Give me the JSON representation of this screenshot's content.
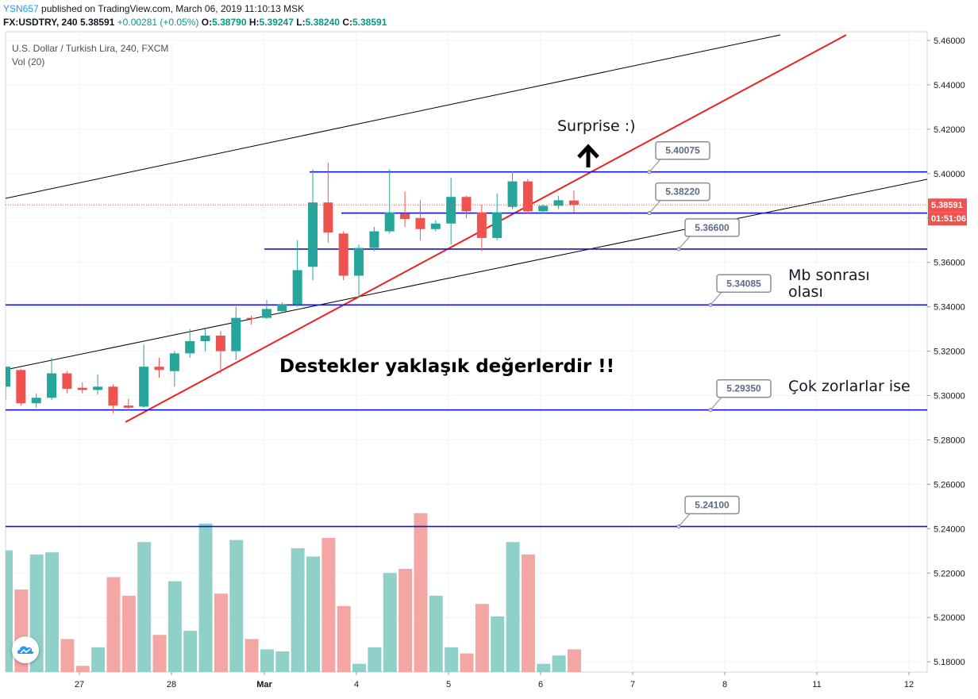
{
  "header": {
    "author": "YSN657",
    "published": " published on TradingView.com, March 06, 2019 11:10:13 MSK",
    "symbol": "FX:USDTRY, 240",
    "last": "5.38591",
    "change": "+0.00281 (+0.05%)",
    "o_label": "O:",
    "o": "5.38790",
    "h_label": "H:",
    "h": "5.39247",
    "l_label": "L:",
    "l": "5.38240",
    "c_label": "C:",
    "c": "5.38591"
  },
  "legend": {
    "title": "U.S. Dollar / Turkish Lira, 240, FXCM",
    "volume": "Vol (20)"
  },
  "colors": {
    "up": "#26a69a",
    "down": "#ef5350",
    "vol_up": "#8fd1c9",
    "vol_down": "#f4a6a4",
    "level": "#1515d0",
    "trend_red": "#f02020",
    "channel": "#000000"
  },
  "chart_data": {
    "type": "candlestick",
    "symbol": "FX:USDTRY",
    "interval": "240",
    "ylim": [
      5.17,
      5.465
    ],
    "y_ticks": [
      "5.46000",
      "5.44000",
      "5.42000",
      "5.40000",
      "5.38000",
      "5.36000",
      "5.34000",
      "5.32000",
      "5.30000",
      "5.28000",
      "5.26000",
      "5.24000",
      "5.22000",
      "5.20000",
      "5.18000"
    ],
    "x_ticks": [
      "27",
      "28",
      "Mar",
      "4",
      "5",
      "6",
      "7",
      "8",
      "11",
      "12"
    ],
    "price_label": "5.38591",
    "time_label": "01:51:06",
    "candles": [
      {
        "o": 5.304,
        "h": 5.313,
        "l": 5.298,
        "c": 5.313
      },
      {
        "o": 5.3115,
        "h": 5.312,
        "l": 5.2955,
        "c": 5.2965
      },
      {
        "o": 5.2965,
        "h": 5.301,
        "l": 5.2945,
        "c": 5.299
      },
      {
        "o": 5.299,
        "h": 5.317,
        "l": 5.298,
        "c": 5.31
      },
      {
        "o": 5.31,
        "h": 5.311,
        "l": 5.301,
        "c": 5.303
      },
      {
        "o": 5.3035,
        "h": 5.306,
        "l": 5.301,
        "c": 5.3025
      },
      {
        "o": 5.3025,
        "h": 5.3095,
        "l": 5.3005,
        "c": 5.304
      },
      {
        "o": 5.304,
        "h": 5.305,
        "l": 5.292,
        "c": 5.2955
      },
      {
        "o": 5.2955,
        "h": 5.2985,
        "l": 5.2935,
        "c": 5.2945
      },
      {
        "o": 5.295,
        "h": 5.323,
        "l": 5.2945,
        "c": 5.313
      },
      {
        "o": 5.313,
        "h": 5.317,
        "l": 5.308,
        "c": 5.3115
      },
      {
        "o": 5.311,
        "h": 5.32,
        "l": 5.304,
        "c": 5.319
      },
      {
        "o": 5.319,
        "h": 5.33,
        "l": 5.317,
        "c": 5.3245
      },
      {
        "o": 5.3245,
        "h": 5.33,
        "l": 5.32,
        "c": 5.327
      },
      {
        "o": 5.327,
        "h": 5.329,
        "l": 5.31,
        "c": 5.32
      },
      {
        "o": 5.32,
        "h": 5.34,
        "l": 5.316,
        "c": 5.335
      },
      {
        "o": 5.335,
        "h": 5.336,
        "l": 5.332,
        "c": 5.3345
      },
      {
        "o": 5.335,
        "h": 5.343,
        "l": 5.3345,
        "c": 5.339
      },
      {
        "o": 5.338,
        "h": 5.342,
        "l": 5.337,
        "c": 5.341
      },
      {
        "o": 5.341,
        "h": 5.37,
        "l": 5.34,
        "c": 5.3565
      },
      {
        "o": 5.358,
        "h": 5.402,
        "l": 5.352,
        "c": 5.387
      },
      {
        "o": 5.387,
        "h": 5.405,
        "l": 5.369,
        "c": 5.3735
      },
      {
        "o": 5.373,
        "h": 5.374,
        "l": 5.352,
        "c": 5.354
      },
      {
        "o": 5.354,
        "h": 5.368,
        "l": 5.344,
        "c": 5.3665
      },
      {
        "o": 5.3665,
        "h": 5.376,
        "l": 5.365,
        "c": 5.374
      },
      {
        "o": 5.374,
        "h": 5.402,
        "l": 5.373,
        "c": 5.3825
      },
      {
        "o": 5.382,
        "h": 5.392,
        "l": 5.376,
        "c": 5.3795
      },
      {
        "o": 5.38,
        "h": 5.388,
        "l": 5.37,
        "c": 5.375
      },
      {
        "o": 5.375,
        "h": 5.379,
        "l": 5.374,
        "c": 5.3775
      },
      {
        "o": 5.3775,
        "h": 5.398,
        "l": 5.368,
        "c": 5.3895
      },
      {
        "o": 5.3895,
        "h": 5.39,
        "l": 5.38,
        "c": 5.383
      },
      {
        "o": 5.3825,
        "h": 5.386,
        "l": 5.365,
        "c": 5.371
      },
      {
        "o": 5.371,
        "h": 5.391,
        "l": 5.37,
        "c": 5.3825
      },
      {
        "o": 5.385,
        "h": 5.401,
        "l": 5.384,
        "c": 5.3965
      },
      {
        "o": 5.3965,
        "h": 5.3975,
        "l": 5.382,
        "c": 5.383
      },
      {
        "o": 5.383,
        "h": 5.386,
        "l": 5.382,
        "c": 5.3855
      },
      {
        "o": 5.3855,
        "h": 5.39,
        "l": 5.384,
        "c": 5.388
      },
      {
        "o": 5.3879,
        "h": 5.39247,
        "l": 5.3824,
        "c": 5.38591
      }
    ],
    "volume": [
      0.59,
      0.4,
      0.57,
      0.58,
      0.16,
      0.03,
      0.12,
      0.46,
      0.37,
      0.63,
      0.18,
      0.44,
      0.2,
      0.72,
      0.38,
      0.64,
      0.16,
      0.11,
      0.1,
      0.6,
      0.56,
      0.65,
      0.32,
      0.04,
      0.12,
      0.48,
      0.5,
      0.77,
      0.37,
      0.12,
      0.09,
      0.33,
      0.27,
      0.63,
      0.57,
      0.04,
      0.08,
      0.11
    ],
    "levels": [
      {
        "label": "5.40075",
        "price": 5.40075
      },
      {
        "label": "5.38220",
        "price": 5.3822
      },
      {
        "label": "5.36600",
        "price": 5.366
      },
      {
        "label": "5.34085",
        "price": 5.34085
      },
      {
        "label": "5.29350",
        "price": 5.2935
      },
      {
        "label": "5.24100",
        "price": 5.241
      }
    ],
    "annotations": {
      "surprise": "Surprise :)",
      "mb1": "Mb sonrası",
      "mb2": "olası",
      "cok": "Çok zorlarlar ise",
      "destek": "Destekler yaklaşık değerlerdir !!"
    }
  }
}
